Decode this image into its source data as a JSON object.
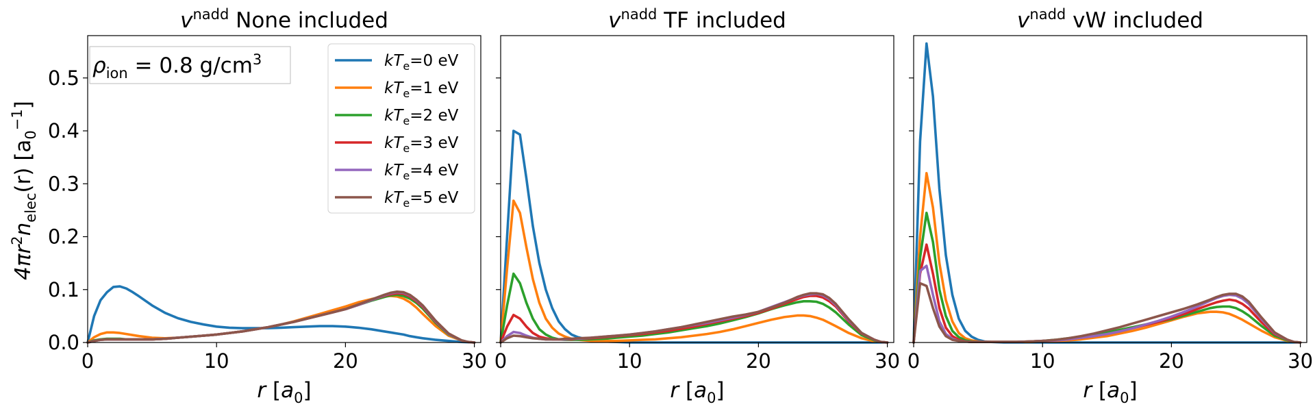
{
  "figure": {
    "ylabel": "4πr²n_elec(r) [a₀⁻¹]",
    "ylabel_parts": {
      "pre": "4πr",
      "sup2": "2",
      "n": "n",
      "sub_elec": "elec",
      "post": "(r) [a",
      "sub0": "0",
      "supm1": "−1",
      "end": "]"
    },
    "annotation": {
      "rho": "ρ",
      "sub": "ion",
      "rest": " = 0.8 g/cm",
      "sup": "3"
    }
  },
  "chart_data": [
    {
      "type": "line",
      "title": "v^nadd None included",
      "title_parts": {
        "v": "v",
        "sup": "nadd",
        "rest": " None included"
      },
      "xlabel": "r [a0]",
      "xlim": [
        0,
        30.5
      ],
      "ylim": [
        0,
        0.58
      ],
      "xticks": [
        "0",
        "10",
        "20",
        "30"
      ],
      "yticks": [
        "0.0",
        "0.1",
        "0.2",
        "0.3",
        "0.4",
        "0.5"
      ],
      "x": [
        0,
        0.5,
        1,
        1.5,
        2,
        2.5,
        3,
        3.5,
        4,
        5,
        6,
        7,
        8,
        9,
        10,
        11,
        12,
        13,
        14,
        15,
        16,
        17,
        18,
        19,
        20,
        21,
        22,
        23,
        23.5,
        24,
        24.5,
        25,
        25.5,
        26,
        27,
        28,
        29,
        29.5,
        30
      ],
      "series": [
        {
          "name": "kT_e=0 eV",
          "color": "#1f77b4",
          "values": [
            0,
            0.05,
            0.08,
            0.095,
            0.105,
            0.106,
            0.102,
            0.095,
            0.087,
            0.07,
            0.056,
            0.046,
            0.039,
            0.034,
            0.03,
            0.028,
            0.027,
            0.027,
            0.027,
            0.028,
            0.029,
            0.03,
            0.031,
            0.031,
            0.03,
            0.028,
            0.025,
            0.021,
            0.019,
            0.017,
            0.015,
            0.012,
            0.01,
            0.008,
            0.005,
            0.003,
            0.001,
            0.0005,
            0
          ]
        },
        {
          "name": "kT_e=1 eV",
          "color": "#ff7f0e",
          "values": [
            0,
            0.01,
            0.016,
            0.019,
            0.019,
            0.018,
            0.016,
            0.014,
            0.012,
            0.009,
            0.008,
            0.009,
            0.011,
            0.013,
            0.015,
            0.018,
            0.021,
            0.025,
            0.029,
            0.034,
            0.04,
            0.047,
            0.054,
            0.061,
            0.068,
            0.076,
            0.082,
            0.087,
            0.088,
            0.087,
            0.083,
            0.076,
            0.066,
            0.054,
            0.031,
            0.013,
            0.004,
            0.001,
            0
          ]
        },
        {
          "name": "kT_e=2 eV",
          "color": "#2ca02c",
          "values": [
            0,
            0.004,
            0.006,
            0.007,
            0.007,
            0.007,
            0.006,
            0.006,
            0.006,
            0.006,
            0.007,
            0.009,
            0.011,
            0.013,
            0.015,
            0.018,
            0.021,
            0.025,
            0.029,
            0.034,
            0.039,
            0.045,
            0.051,
            0.057,
            0.063,
            0.071,
            0.079,
            0.086,
            0.089,
            0.09,
            0.088,
            0.083,
            0.075,
            0.064,
            0.037,
            0.015,
            0.004,
            0.001,
            0
          ]
        },
        {
          "name": "kT_e=3 eV",
          "color": "#d62728",
          "values": [
            0,
            0.003,
            0.005,
            0.006,
            0.006,
            0.006,
            0.006,
            0.006,
            0.006,
            0.006,
            0.007,
            0.009,
            0.011,
            0.013,
            0.015,
            0.018,
            0.021,
            0.025,
            0.029,
            0.034,
            0.039,
            0.045,
            0.051,
            0.057,
            0.063,
            0.071,
            0.08,
            0.088,
            0.091,
            0.093,
            0.092,
            0.087,
            0.078,
            0.067,
            0.039,
            0.016,
            0.004,
            0.001,
            0
          ]
        },
        {
          "name": "kT_e=4 eV",
          "color": "#9467bd",
          "values": [
            0,
            0.003,
            0.005,
            0.006,
            0.006,
            0.006,
            0.006,
            0.006,
            0.006,
            0.006,
            0.007,
            0.009,
            0.011,
            0.013,
            0.015,
            0.018,
            0.021,
            0.025,
            0.029,
            0.034,
            0.039,
            0.045,
            0.051,
            0.057,
            0.063,
            0.071,
            0.08,
            0.089,
            0.093,
            0.095,
            0.094,
            0.089,
            0.08,
            0.069,
            0.04,
            0.016,
            0.004,
            0.001,
            0
          ]
        },
        {
          "name": "kT_e=5 eV",
          "color": "#8c564b",
          "values": [
            0,
            0.003,
            0.005,
            0.006,
            0.006,
            0.006,
            0.006,
            0.006,
            0.006,
            0.006,
            0.007,
            0.009,
            0.011,
            0.013,
            0.015,
            0.018,
            0.021,
            0.025,
            0.029,
            0.034,
            0.039,
            0.045,
            0.051,
            0.057,
            0.063,
            0.072,
            0.081,
            0.09,
            0.094,
            0.096,
            0.095,
            0.09,
            0.081,
            0.07,
            0.041,
            0.017,
            0.004,
            0.001,
            0
          ]
        }
      ]
    },
    {
      "type": "line",
      "title": "v^nadd TF included",
      "title_parts": {
        "v": "v",
        "sup": "nadd",
        "rest": " TF included"
      },
      "xlabel": "r [a0]",
      "xlim": [
        0,
        30.5
      ],
      "ylim": [
        0,
        0.58
      ],
      "xticks": [
        "0",
        "10",
        "20",
        "30"
      ],
      "yticks": [],
      "x": [
        0,
        0.5,
        1,
        1.5,
        2,
        2.5,
        3,
        3.5,
        4,
        4.5,
        5,
        5.5,
        6,
        7,
        8,
        9,
        10,
        11,
        12,
        13,
        14,
        15,
        16,
        17,
        18,
        19,
        20,
        21,
        22,
        23,
        23.5,
        24,
        24.5,
        25,
        25.5,
        26,
        27,
        28,
        29,
        29.5,
        30
      ],
      "series": [
        {
          "name": "kT_e=0 eV",
          "color": "#1f77b4",
          "values": [
            0,
            0.2,
            0.4,
            0.393,
            0.31,
            0.22,
            0.15,
            0.1,
            0.065,
            0.04,
            0.025,
            0.015,
            0.01,
            0.004,
            0.002,
            0.001,
            0,
            0,
            0,
            0,
            0,
            0,
            0,
            0,
            0,
            0,
            0,
            0,
            0,
            0,
            0,
            0,
            0,
            0,
            0,
            0,
            0,
            0,
            0,
            0,
            0
          ]
        },
        {
          "name": "kT_e=1 eV",
          "color": "#ff7f0e",
          "values": [
            0,
            0.14,
            0.268,
            0.245,
            0.18,
            0.12,
            0.075,
            0.045,
            0.028,
            0.017,
            0.011,
            0.007,
            0.005,
            0.003,
            0.003,
            0.003,
            0.004,
            0.005,
            0.006,
            0.008,
            0.01,
            0.013,
            0.016,
            0.02,
            0.025,
            0.031,
            0.037,
            0.043,
            0.048,
            0.051,
            0.051,
            0.05,
            0.047,
            0.043,
            0.037,
            0.031,
            0.018,
            0.008,
            0.002,
            0.001,
            0
          ]
        },
        {
          "name": "kT_e=2 eV",
          "color": "#2ca02c",
          "values": [
            0,
            0.07,
            0.13,
            0.112,
            0.075,
            0.045,
            0.025,
            0.015,
            0.009,
            0.006,
            0.005,
            0.005,
            0.005,
            0.006,
            0.007,
            0.009,
            0.011,
            0.013,
            0.016,
            0.019,
            0.023,
            0.027,
            0.031,
            0.036,
            0.042,
            0.048,
            0.055,
            0.063,
            0.07,
            0.076,
            0.078,
            0.078,
            0.077,
            0.073,
            0.066,
            0.057,
            0.034,
            0.014,
            0.004,
            0.001,
            0
          ]
        },
        {
          "name": "kT_e=3 eV",
          "color": "#d62728",
          "values": [
            0,
            0.03,
            0.052,
            0.045,
            0.03,
            0.018,
            0.011,
            0.008,
            0.006,
            0.006,
            0.006,
            0.006,
            0.007,
            0.008,
            0.01,
            0.012,
            0.014,
            0.016,
            0.019,
            0.022,
            0.026,
            0.03,
            0.035,
            0.04,
            0.045,
            0.05,
            0.056,
            0.064,
            0.073,
            0.082,
            0.086,
            0.088,
            0.088,
            0.085,
            0.078,
            0.068,
            0.04,
            0.017,
            0.005,
            0.001,
            0
          ]
        },
        {
          "name": "kT_e=4 eV",
          "color": "#9467bd",
          "values": [
            0,
            0.012,
            0.02,
            0.018,
            0.013,
            0.009,
            0.007,
            0.006,
            0.006,
            0.006,
            0.006,
            0.007,
            0.007,
            0.009,
            0.011,
            0.013,
            0.015,
            0.018,
            0.021,
            0.025,
            0.029,
            0.033,
            0.037,
            0.042,
            0.047,
            0.052,
            0.058,
            0.067,
            0.076,
            0.085,
            0.089,
            0.091,
            0.092,
            0.089,
            0.082,
            0.071,
            0.042,
            0.018,
            0.005,
            0.001,
            0
          ]
        },
        {
          "name": "kT_e=5 eV",
          "color": "#8c564b",
          "values": [
            0,
            0.008,
            0.013,
            0.012,
            0.01,
            0.008,
            0.007,
            0.006,
            0.006,
            0.006,
            0.007,
            0.007,
            0.008,
            0.009,
            0.011,
            0.013,
            0.015,
            0.018,
            0.021,
            0.025,
            0.029,
            0.034,
            0.039,
            0.044,
            0.049,
            0.053,
            0.058,
            0.066,
            0.075,
            0.086,
            0.09,
            0.093,
            0.093,
            0.091,
            0.084,
            0.073,
            0.044,
            0.018,
            0.005,
            0.001,
            0
          ]
        }
      ]
    },
    {
      "type": "line",
      "title": "v^nadd vW included",
      "title_parts": {
        "v": "v",
        "sup": "nadd",
        "rest": " vW included"
      },
      "xlabel": "r [a0]",
      "xlim": [
        0,
        30.5
      ],
      "ylim": [
        0,
        0.58
      ],
      "xticks": [
        "0",
        "10",
        "20",
        "30"
      ],
      "yticks": [],
      "x": [
        0,
        0.5,
        1,
        1.5,
        2,
        2.5,
        3,
        3.5,
        4,
        4.5,
        5,
        5.5,
        6,
        7,
        8,
        9,
        10,
        11,
        12,
        13,
        14,
        15,
        16,
        17,
        18,
        19,
        20,
        21,
        22,
        23,
        23.5,
        24,
        24.5,
        25,
        25.5,
        26,
        27,
        28,
        29,
        29.5,
        30
      ],
      "series": [
        {
          "name": "kT_e=0 eV",
          "color": "#1f77b4",
          "values": [
            0,
            0.38,
            0.565,
            0.465,
            0.29,
            0.165,
            0.09,
            0.045,
            0.022,
            0.011,
            0.005,
            0.002,
            0.001,
            0,
            0,
            0,
            0,
            0,
            0,
            0,
            0,
            0,
            0,
            0,
            0,
            0,
            0,
            0,
            0,
            0,
            0,
            0,
            0,
            0,
            0,
            0,
            0,
            0,
            0,
            0,
            0
          ]
        },
        {
          "name": "kT_e=1 eV",
          "color": "#ff7f0e",
          "values": [
            0,
            0.2,
            0.32,
            0.255,
            0.15,
            0.08,
            0.04,
            0.018,
            0.008,
            0.004,
            0.002,
            0.001,
            0.001,
            0.001,
            0.001,
            0.001,
            0.002,
            0.003,
            0.004,
            0.006,
            0.009,
            0.012,
            0.017,
            0.022,
            0.028,
            0.035,
            0.042,
            0.049,
            0.055,
            0.058,
            0.058,
            0.057,
            0.054,
            0.049,
            0.043,
            0.036,
            0.022,
            0.01,
            0.003,
            0.001,
            0
          ]
        },
        {
          "name": "kT_e=2 eV",
          "color": "#2ca02c",
          "values": [
            0,
            0.16,
            0.245,
            0.19,
            0.1,
            0.05,
            0.022,
            0.01,
            0.004,
            0.002,
            0.001,
            0.001,
            0.001,
            0.001,
            0.001,
            0.002,
            0.003,
            0.005,
            0.008,
            0.011,
            0.015,
            0.019,
            0.024,
            0.029,
            0.034,
            0.039,
            0.044,
            0.051,
            0.058,
            0.065,
            0.067,
            0.068,
            0.068,
            0.065,
            0.059,
            0.051,
            0.031,
            0.013,
            0.004,
            0.001,
            0
          ]
        },
        {
          "name": "kT_e=3 eV",
          "color": "#d62728",
          "values": [
            0,
            0.13,
            0.185,
            0.13,
            0.065,
            0.028,
            0.012,
            0.005,
            0.002,
            0.001,
            0.001,
            0.001,
            0.001,
            0.001,
            0.001,
            0.002,
            0.003,
            0.004,
            0.006,
            0.009,
            0.012,
            0.016,
            0.021,
            0.027,
            0.033,
            0.039,
            0.046,
            0.054,
            0.063,
            0.072,
            0.076,
            0.079,
            0.081,
            0.079,
            0.073,
            0.064,
            0.038,
            0.016,
            0.005,
            0.001,
            0
          ]
        },
        {
          "name": "kT_e=4 eV",
          "color": "#9467bd",
          "values": [
            0,
            0.135,
            0.145,
            0.09,
            0.04,
            0.016,
            0.007,
            0.003,
            0.002,
            0.001,
            0.001,
            0.001,
            0.001,
            0.001,
            0.001,
            0.002,
            0.003,
            0.004,
            0.006,
            0.009,
            0.012,
            0.016,
            0.021,
            0.027,
            0.034,
            0.041,
            0.049,
            0.058,
            0.068,
            0.079,
            0.084,
            0.088,
            0.09,
            0.089,
            0.083,
            0.073,
            0.044,
            0.018,
            0.005,
            0.001,
            0
          ]
        },
        {
          "name": "kT_e=5 eV",
          "color": "#8c564b",
          "values": [
            0,
            0.112,
            0.107,
            0.065,
            0.03,
            0.012,
            0.005,
            0.003,
            0.002,
            0.001,
            0.001,
            0.001,
            0.001,
            0.001,
            0.001,
            0.002,
            0.003,
            0.005,
            0.008,
            0.012,
            0.017,
            0.023,
            0.029,
            0.036,
            0.043,
            0.05,
            0.057,
            0.064,
            0.072,
            0.081,
            0.086,
            0.09,
            0.092,
            0.092,
            0.087,
            0.077,
            0.047,
            0.019,
            0.005,
            0.001,
            0
          ]
        }
      ]
    }
  ],
  "legend": {
    "location": "top-right of first panel",
    "entries": [
      {
        "pre": "k",
        "T": "T",
        "sub": "e",
        "post": "=0 eV",
        "color": "#1f77b4"
      },
      {
        "pre": "k",
        "T": "T",
        "sub": "e",
        "post": "=1 eV",
        "color": "#ff7f0e"
      },
      {
        "pre": "k",
        "T": "T",
        "sub": "e",
        "post": "=2 eV",
        "color": "#2ca02c"
      },
      {
        "pre": "k",
        "T": "T",
        "sub": "e",
        "post": "=3 eV",
        "color": "#d62728"
      },
      {
        "pre": "k",
        "T": "T",
        "sub": "e",
        "post": "=4 eV",
        "color": "#9467bd"
      },
      {
        "pre": "k",
        "T": "T",
        "sub": "e",
        "post": "=5 eV",
        "color": "#8c564b"
      }
    ]
  }
}
